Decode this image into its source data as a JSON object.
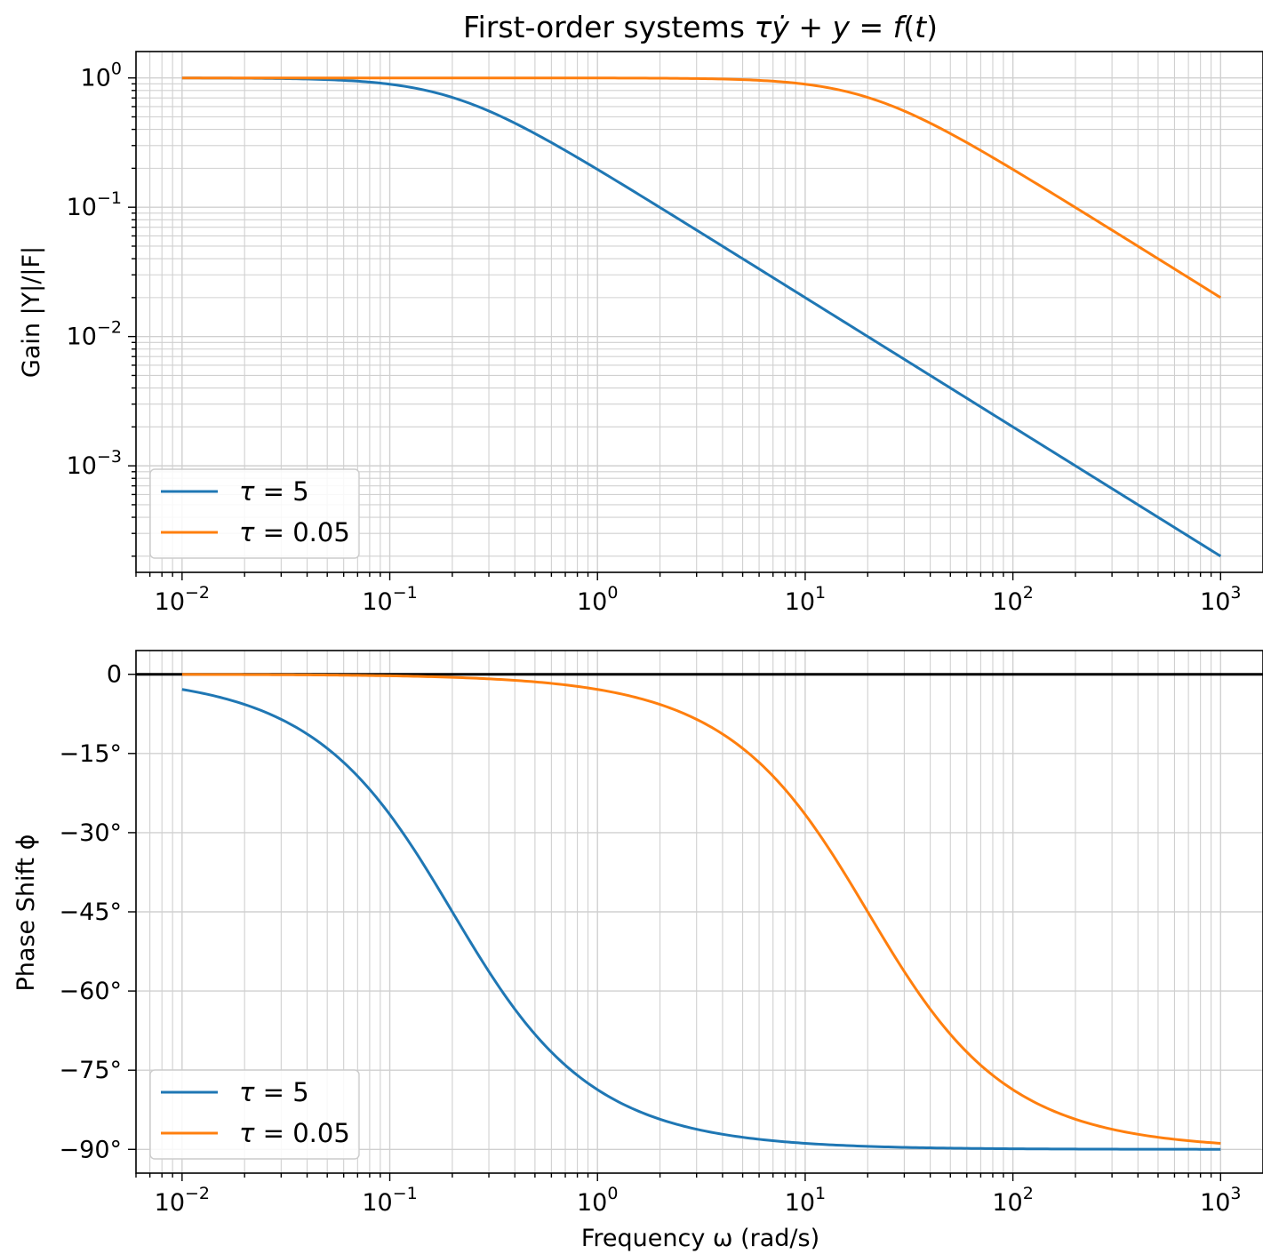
{
  "title": {
    "prefix": "First-order systems ",
    "tau": "τ",
    "ydot": "ẏ",
    "mid": " + ",
    "y": "y",
    "eq": " = ",
    "f": "f",
    "lp": "(",
    "t": "t",
    "rp": ")"
  },
  "legend": {
    "tau_label": "τ",
    "eq": " = "
  },
  "colors": {
    "tau_5": "#1f77b4",
    "tau_0_05": "#ff7f0e",
    "grid": "#d0d0d0",
    "zero_line": "#000000"
  },
  "chart_data": [
    {
      "type": "line",
      "title": "First-order systems τẏ + y = f(t)",
      "xlabel": "",
      "ylabel": "Gain |Y|/|F|",
      "xscale": "log",
      "yscale": "log",
      "xlim": [
        0.006,
        1600
      ],
      "ylim": [
        0.00015,
        1.6
      ],
      "grid": "major and minor",
      "legend_position": "lower-left",
      "x_ticks": [
        {
          "base": "10",
          "exp": "−2",
          "value": 0.01
        },
        {
          "base": "10",
          "exp": "−1",
          "value": 0.1
        },
        {
          "base": "10",
          "exp": "0",
          "value": 1
        },
        {
          "base": "10",
          "exp": "1",
          "value": 10
        },
        {
          "base": "10",
          "exp": "2",
          "value": 100
        },
        {
          "base": "10",
          "exp": "3",
          "value": 1000
        }
      ],
      "y_ticks": [
        {
          "base": "10",
          "exp": "0",
          "value": 1
        },
        {
          "base": "10",
          "exp": "−1",
          "value": 0.1
        },
        {
          "base": "10",
          "exp": "−2",
          "value": 0.01
        },
        {
          "base": "10",
          "exp": "−3",
          "value": 0.001
        }
      ],
      "series": [
        {
          "name": "τ = 5",
          "tau_value": "5",
          "color": "#1f77b4",
          "x": [
            0.01,
            0.02,
            0.05,
            0.1,
            0.2,
            0.5,
            1,
            2,
            5,
            10,
            20,
            50,
            100,
            200,
            500,
            1000
          ],
          "y": [
            0.9988,
            0.995,
            0.9701,
            0.8944,
            0.7071,
            0.3714,
            0.1961,
            0.0995,
            0.03997,
            0.02,
            0.01,
            0.004,
            0.002,
            0.001,
            0.0004,
            0.0002
          ]
        },
        {
          "name": "τ = 0.05",
          "tau_value": "0.05",
          "color": "#ff7f0e",
          "x": [
            0.01,
            0.1,
            1,
            2,
            5,
            10,
            20,
            50,
            100,
            200,
            500,
            1000
          ],
          "y": [
            1.0,
            1.0,
            0.9988,
            0.995,
            0.9701,
            0.8944,
            0.7071,
            0.3714,
            0.1961,
            0.0995,
            0.03997,
            0.02
          ]
        }
      ]
    },
    {
      "type": "line",
      "xlabel": "Frequency ω (rad/s)",
      "ylabel": "Phase Shift ϕ",
      "xscale": "log",
      "yscale": "linear",
      "xlim": [
        0.006,
        1600
      ],
      "ylim": [
        -94.5,
        4.5
      ],
      "grid": "major and minor",
      "legend_position": "lower-left",
      "reference_line": 0,
      "x_ticks": [
        {
          "base": "10",
          "exp": "−2",
          "value": 0.01
        },
        {
          "base": "10",
          "exp": "−1",
          "value": 0.1
        },
        {
          "base": "10",
          "exp": "0",
          "value": 1
        },
        {
          "base": "10",
          "exp": "1",
          "value": 10
        },
        {
          "base": "10",
          "exp": "2",
          "value": 100
        },
        {
          "base": "10",
          "exp": "3",
          "value": 1000
        }
      ],
      "y_ticks": [
        {
          "label": "0",
          "value": 0
        },
        {
          "label": "−15°",
          "value": -15
        },
        {
          "label": "−30°",
          "value": -30
        },
        {
          "label": "−45°",
          "value": -45
        },
        {
          "label": "−60°",
          "value": -60
        },
        {
          "label": "−75°",
          "value": -75
        },
        {
          "label": "−90°",
          "value": -90
        }
      ],
      "series": [
        {
          "name": "τ = 5",
          "tau_value": "5",
          "color": "#1f77b4",
          "x": [
            0.01,
            0.02,
            0.05,
            0.1,
            0.2,
            0.5,
            1,
            2,
            5,
            10,
            20,
            50,
            100,
            1000
          ],
          "y": [
            -2.86,
            -5.71,
            -14.04,
            -26.57,
            -45.0,
            -68.2,
            -78.69,
            -84.29,
            -87.71,
            -88.85,
            -89.43,
            -89.77,
            -89.89,
            -89.99
          ]
        },
        {
          "name": "τ = 0.05",
          "tau_value": "0.05",
          "color": "#ff7f0e",
          "x": [
            0.01,
            0.1,
            1,
            2,
            5,
            10,
            20,
            50,
            100,
            200,
            500,
            1000
          ],
          "y": [
            -0.03,
            -0.29,
            -2.86,
            -5.71,
            -14.04,
            -26.57,
            -45.0,
            -68.2,
            -78.69,
            -84.29,
            -87.71,
            -88.85
          ]
        }
      ]
    }
  ]
}
